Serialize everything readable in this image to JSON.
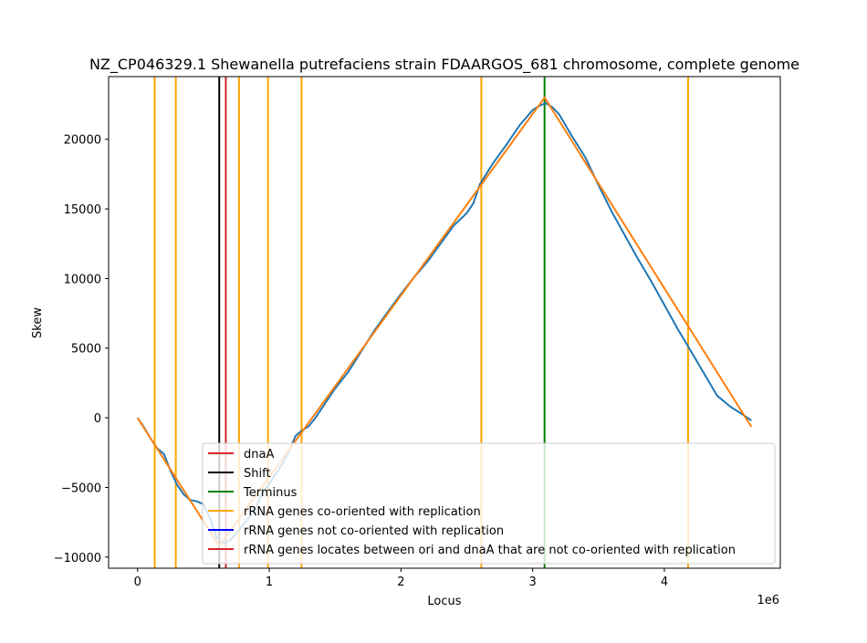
{
  "chart_data": {
    "type": "line",
    "title": "NZ_CP046329.1 Shewanella putrefaciens strain FDAARGOS_681 chromosome, complete genome",
    "xlabel": "Locus",
    "ylabel": "Skew",
    "x_offset_text": "1e6",
    "xlim": [
      -220000,
      4880000
    ],
    "ylim": [
      -10800,
      24500
    ],
    "x_ticks": [
      {
        "value": 0,
        "label": "0"
      },
      {
        "value": 1000000,
        "label": "1"
      },
      {
        "value": 2000000,
        "label": "2"
      },
      {
        "value": 3000000,
        "label": "3"
      },
      {
        "value": 4000000,
        "label": "4"
      }
    ],
    "y_ticks": [
      {
        "value": -10000,
        "label": "−10000"
      },
      {
        "value": -5000,
        "label": "−5000"
      },
      {
        "value": 0,
        "label": "0"
      },
      {
        "value": 5000,
        "label": "5000"
      },
      {
        "value": 10000,
        "label": "10000"
      },
      {
        "value": 15000,
        "label": "15000"
      },
      {
        "value": 20000,
        "label": "20000"
      }
    ],
    "grid": false,
    "legend_position": "lower-center",
    "series": [
      {
        "color": "#1f77b4",
        "x": [
          0,
          50000,
          100000,
          150000,
          200000,
          250000,
          300000,
          350000,
          400000,
          450000,
          500000,
          550000,
          600000,
          650000,
          700000,
          750000,
          800000,
          850000,
          900000,
          950000,
          1000000,
          1050000,
          1100000,
          1150000,
          1200000,
          1250000,
          1300000,
          1350000,
          1400000,
          1500000,
          1600000,
          1700000,
          1800000,
          1900000,
          2000000,
          2100000,
          2200000,
          2300000,
          2400000,
          2500000,
          2550000,
          2600000,
          2700000,
          2800000,
          2900000,
          3000000,
          3050000,
          3100000,
          3150000,
          3200000,
          3300000,
          3400000,
          3500000,
          3600000,
          3700000,
          3800000,
          3900000,
          4000000,
          4100000,
          4200000,
          4300000,
          4400000,
          4500000,
          4600000,
          4660000
        ],
        "y": [
          0,
          -700,
          -1500,
          -2200,
          -2600,
          -3800,
          -4800,
          -5500,
          -5900,
          -6000,
          -6200,
          -7200,
          -8600,
          -9000,
          -8800,
          -8300,
          -7700,
          -7100,
          -6400,
          -5400,
          -4700,
          -4000,
          -3300,
          -2400,
          -1300,
          -900,
          -600,
          0,
          700,
          2100,
          3300,
          4800,
          6300,
          7600,
          8900,
          10100,
          11200,
          12500,
          13800,
          14700,
          15400,
          16800,
          18300,
          19600,
          21000,
          22100,
          22400,
          22600,
          22300,
          21800,
          20200,
          18700,
          16700,
          14800,
          13100,
          11400,
          9800,
          8100,
          6400,
          4800,
          3200,
          1600,
          800,
          200,
          -200
        ]
      },
      {
        "color": "#ff7f0e",
        "x": [
          0,
          620000,
          3090000,
          4660000
        ],
        "y": [
          0,
          -9200,
          23000,
          -650
        ]
      }
    ],
    "vertical_lines": [
      {
        "series": "rRNA genes co-oriented with replication",
        "x": 130000,
        "color": "#ffa500"
      },
      {
        "series": "rRNA genes co-oriented with replication",
        "x": 290000,
        "color": "#ffa500"
      },
      {
        "series": "rRNA genes co-oriented with replication",
        "x": 770000,
        "color": "#ffa500"
      },
      {
        "series": "rRNA genes co-oriented with replication",
        "x": 990000,
        "color": "#ffa500"
      },
      {
        "series": "rRNA genes co-oriented with replication",
        "x": 1245000,
        "color": "#ffa500"
      },
      {
        "series": "rRNA genes co-oriented with replication",
        "x": 2610000,
        "color": "#ffa500"
      },
      {
        "series": "rRNA genes co-oriented with replication",
        "x": 4180000,
        "color": "#ffa500"
      },
      {
        "series": "Shift",
        "x": 620000,
        "color": "#000000"
      },
      {
        "series": "dnaA",
        "x": 670000,
        "color": "#d62728"
      },
      {
        "series": "Terminus",
        "x": 3090000,
        "color": "#008000"
      }
    ],
    "legend": [
      {
        "label": "dnaA",
        "color": "#d62728"
      },
      {
        "label": "Shift",
        "color": "#000000"
      },
      {
        "label": "Terminus",
        "color": "#008000"
      },
      {
        "label": "rRNA genes co-oriented with replication",
        "color": "#ffa500"
      },
      {
        "label": "rRNA genes not co-oriented with replication",
        "color": "#0000ff"
      },
      {
        "label": "rRNA genes locates between ori and dnaA that are not co-oriented with replication",
        "color": "#d62728"
      }
    ]
  }
}
